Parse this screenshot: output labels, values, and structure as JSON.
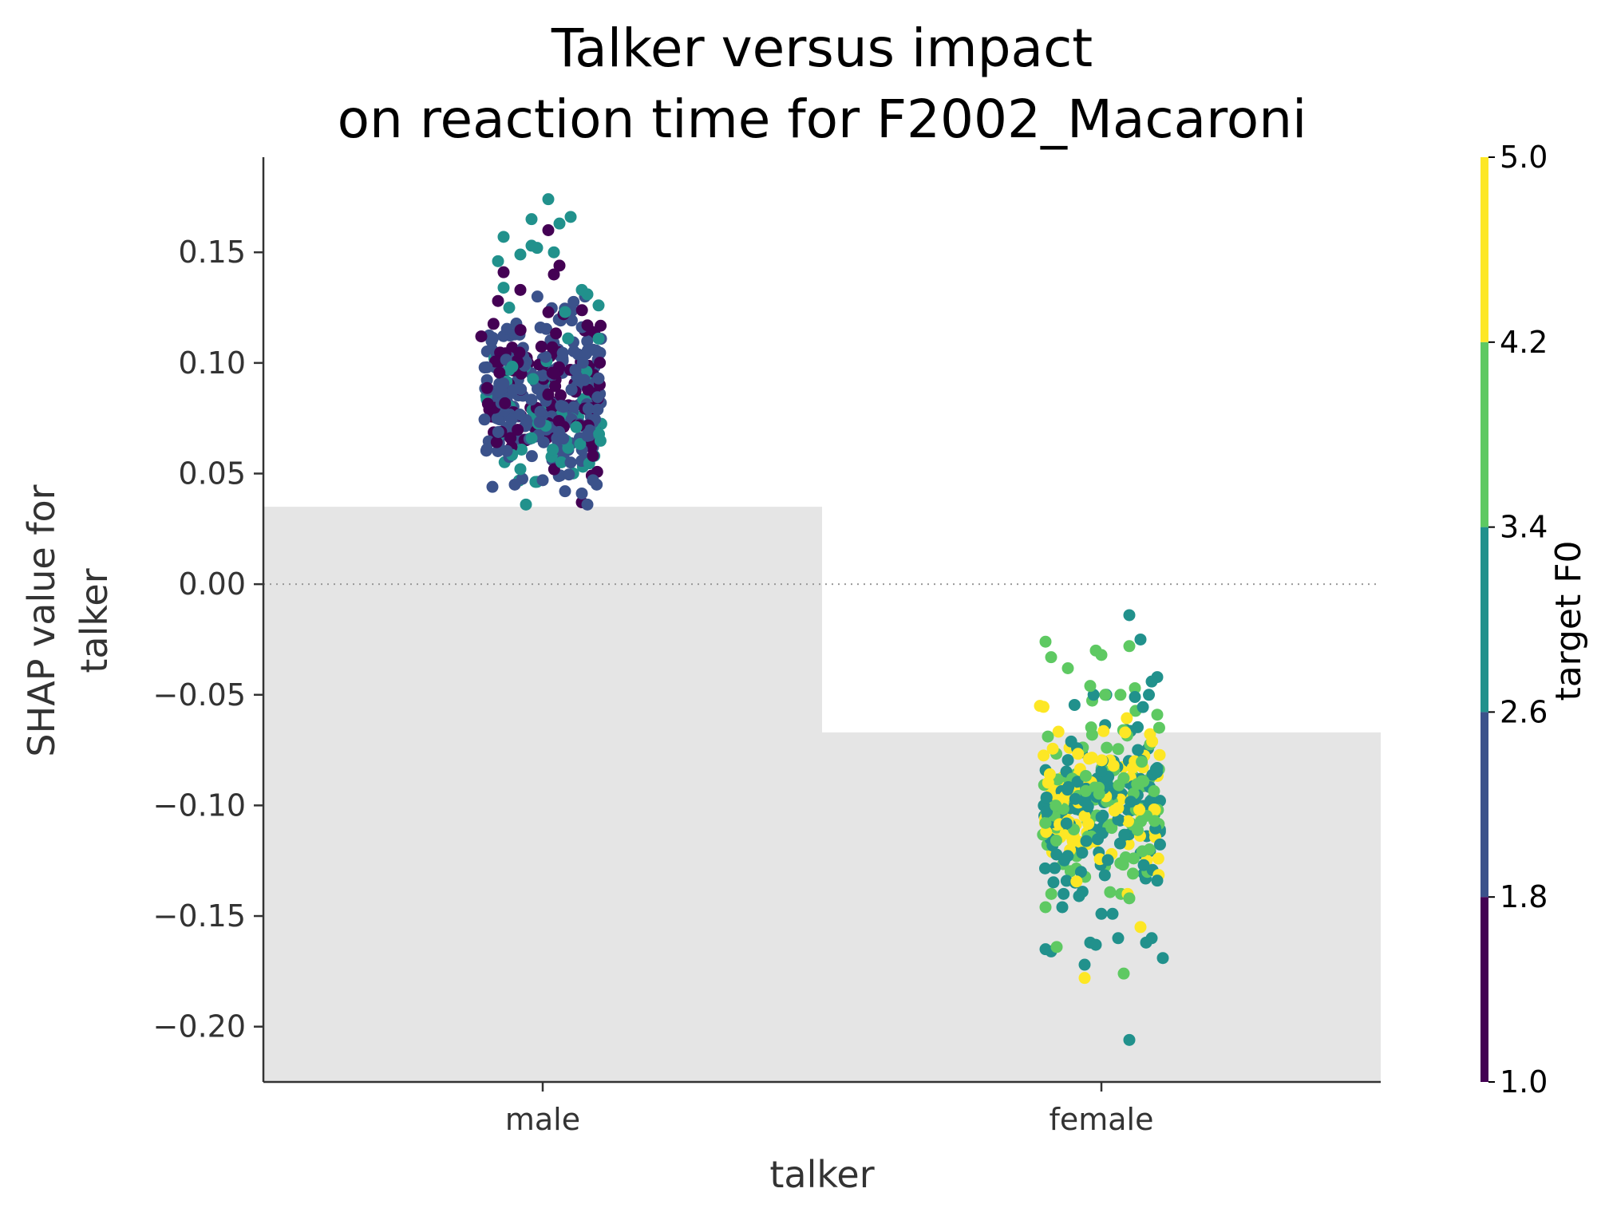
{
  "chart_data": {
    "type": "scatter",
    "title_line1": "Talker versus impact",
    "title_line2": "on reaction time for F2002_Macaroni",
    "xlabel": "talker",
    "ylabel_line1": "SHAP value for",
    "ylabel_line2": "talker",
    "categories": [
      "male",
      "female"
    ],
    "ylim": [
      -0.225,
      0.193
    ],
    "yticks": [
      0.15,
      0.1,
      0.05,
      0.0,
      -0.05,
      -0.1,
      -0.15,
      -0.2
    ],
    "ytick_labels": [
      "0.15",
      "0.10",
      "0.05",
      "0.00",
      "−0.05",
      "−0.10",
      "−0.15",
      "−0.20"
    ],
    "background_bars": [
      {
        "category": "male",
        "value": 0.035
      },
      {
        "category": "female",
        "value": -0.067
      }
    ],
    "zero_line": true,
    "grid": false,
    "colorbar": {
      "label": "target F0",
      "range": [
        1.0,
        5.0
      ],
      "ticks": [
        "1.0",
        "1.8",
        "2.6",
        "3.4",
        "4.2",
        "5.0"
      ],
      "bins": [
        {
          "from": 1.0,
          "to": 1.8,
          "color": "#440154"
        },
        {
          "from": 1.8,
          "to": 2.6,
          "color": "#3b528b"
        },
        {
          "from": 2.6,
          "to": 3.4,
          "color": "#21918c"
        },
        {
          "from": 3.4,
          "to": 4.2,
          "color": "#5ec962"
        },
        {
          "from": 4.2,
          "to": 5.0,
          "color": "#fde725"
        }
      ]
    },
    "groups": [
      {
        "category": "male",
        "points": [
          {
            "jitter": -0.05,
            "y": 0.045,
            "c": 2.2
          },
          {
            "jitter": 0.04,
            "y": 0.042,
            "c": 2.2
          },
          {
            "jitter": 0.07,
            "y": 0.037,
            "c": 1.4
          },
          {
            "jitter": -0.03,
            "y": 0.036,
            "c": 3.0
          },
          {
            "jitter": 0.08,
            "y": 0.036,
            "c": 2.2
          },
          {
            "jitter": -0.09,
            "y": 0.044,
            "c": 2.2
          },
          {
            "jitter": 0.09,
            "y": 0.058,
            "c": 1.4
          },
          {
            "jitter": -0.1,
            "y": 0.061,
            "c": 2.2
          },
          {
            "jitter": 0.1,
            "y": 0.093,
            "c": 2.2
          },
          {
            "jitter": -0.11,
            "y": 0.112,
            "c": 1.4
          },
          {
            "jitter": 0.1,
            "y": 0.111,
            "c": 3.0
          },
          {
            "jitter": -0.08,
            "y": 0.128,
            "c": 1.4
          },
          {
            "jitter": -0.07,
            "y": 0.134,
            "c": 3.0
          },
          {
            "jitter": 0.08,
            "y": 0.131,
            "c": 3.0
          },
          {
            "jitter": 0.1,
            "y": 0.126,
            "c": 3.0
          },
          {
            "jitter": -0.08,
            "y": 0.146,
            "c": 3.0
          },
          {
            "jitter": -0.04,
            "y": 0.149,
            "c": 3.0
          },
          {
            "jitter": -0.01,
            "y": 0.152,
            "c": 3.0
          },
          {
            "jitter": 0.02,
            "y": 0.15,
            "c": 3.0
          },
          {
            "jitter": 0.02,
            "y": 0.14,
            "c": 1.4
          },
          {
            "jitter": 0.03,
            "y": 0.144,
            "c": 1.4
          },
          {
            "jitter": -0.07,
            "y": 0.141,
            "c": 1.4
          },
          {
            "jitter": -0.07,
            "y": 0.157,
            "c": 3.0
          },
          {
            "jitter": -0.02,
            "y": 0.165,
            "c": 3.0
          },
          {
            "jitter": 0.01,
            "y": 0.174,
            "c": 3.0
          },
          {
            "jitter": 0.05,
            "y": 0.166,
            "c": 3.0
          },
          {
            "jitter": 0.03,
            "y": 0.163,
            "c": 3.0
          },
          {
            "jitter": -0.02,
            "y": 0.153,
            "c": 3.0
          },
          {
            "jitter": 0.01,
            "y": 0.16,
            "c": 1.4
          },
          {
            "jitter": -0.04,
            "y": 0.133,
            "c": 1.4
          },
          {
            "jitter": -0.06,
            "y": 0.125,
            "c": 3.0
          },
          {
            "jitter": 0.07,
            "y": 0.133,
            "c": 3.0
          },
          {
            "jitter": 0.04,
            "y": 0.123,
            "c": 3.0
          },
          {
            "jitter": 0.08,
            "y": 0.117,
            "c": 1.4
          },
          {
            "jitter": -0.1,
            "y": 0.098,
            "c": 2.2
          },
          {
            "jitter": -0.02,
            "y": 0.066,
            "c": 3.0
          },
          {
            "jitter": 0.05,
            "y": 0.055,
            "c": 2.2
          },
          {
            "jitter": 0.08,
            "y": 0.067,
            "c": 2.2
          },
          {
            "jitter": 0.06,
            "y": 0.071,
            "c": 3.0
          },
          {
            "jitter": -0.04,
            "y": 0.052,
            "c": 3.0
          },
          {
            "jitter": 0.0,
            "y": 0.047,
            "c": 2.2
          },
          {
            "jitter": 0.09,
            "y": 0.047,
            "c": 2.2
          },
          {
            "jitter": 0.07,
            "y": 0.041,
            "c": 2.2
          }
        ],
        "cloud": {
          "count": 380,
          "y_min": 0.045,
          "y_max": 0.13,
          "center": 0.085,
          "spread": 0.018,
          "jitter": 0.105,
          "color_mix": [
            {
              "c": 2.2,
              "w": 0.56
            },
            {
              "c": 1.4,
              "w": 0.28
            },
            {
              "c": 3.0,
              "w": 0.16
            }
          ]
        }
      },
      {
        "category": "female",
        "points": [
          {
            "jitter": 0.05,
            "y": -0.014,
            "c": 3.0
          },
          {
            "jitter": 0.07,
            "y": -0.025,
            "c": 3.0
          },
          {
            "jitter": -0.1,
            "y": -0.026,
            "c": 3.8
          },
          {
            "jitter": 0.05,
            "y": -0.028,
            "c": 3.8
          },
          {
            "jitter": -0.01,
            "y": -0.03,
            "c": 3.8
          },
          {
            "jitter": 0.0,
            "y": -0.032,
            "c": 3.8
          },
          {
            "jitter": -0.09,
            "y": -0.033,
            "c": 3.8
          },
          {
            "jitter": -0.06,
            "y": -0.038,
            "c": 3.8
          },
          {
            "jitter": 0.1,
            "y": -0.042,
            "c": 3.0
          },
          {
            "jitter": 0.09,
            "y": -0.044,
            "c": 3.0
          },
          {
            "jitter": -0.02,
            "y": -0.046,
            "c": 3.8
          },
          {
            "jitter": 0.06,
            "y": -0.047,
            "c": 3.8
          },
          {
            "jitter": -0.11,
            "y": -0.055,
            "c": 4.6
          },
          {
            "jitter": 0.06,
            "y": -0.051,
            "c": 3.0
          },
          {
            "jitter": 0.1,
            "y": -0.059,
            "c": 3.8
          },
          {
            "jitter": -0.1,
            "y": -0.165,
            "c": 3.0
          },
          {
            "jitter": -0.09,
            "y": -0.166,
            "c": 3.0
          },
          {
            "jitter": -0.08,
            "y": -0.164,
            "c": 3.8
          },
          {
            "jitter": -0.02,
            "y": -0.162,
            "c": 3.0
          },
          {
            "jitter": -0.01,
            "y": -0.163,
            "c": 3.0
          },
          {
            "jitter": 0.03,
            "y": -0.16,
            "c": 3.0
          },
          {
            "jitter": 0.08,
            "y": -0.162,
            "c": 3.0
          },
          {
            "jitter": 0.09,
            "y": -0.16,
            "c": 3.0
          },
          {
            "jitter": 0.11,
            "y": -0.169,
            "c": 3.0
          },
          {
            "jitter": -0.03,
            "y": -0.172,
            "c": 3.0
          },
          {
            "jitter": -0.03,
            "y": -0.178,
            "c": 4.6
          },
          {
            "jitter": 0.04,
            "y": -0.176,
            "c": 3.8
          },
          {
            "jitter": 0.07,
            "y": -0.155,
            "c": 4.6
          },
          {
            "jitter": 0.05,
            "y": -0.206,
            "c": 3.0
          },
          {
            "jitter": -0.1,
            "y": -0.146,
            "c": 3.8
          },
          {
            "jitter": -0.07,
            "y": -0.146,
            "c": 3.0
          },
          {
            "jitter": 0.0,
            "y": -0.149,
            "c": 3.0
          },
          {
            "jitter": 0.02,
            "y": -0.149,
            "c": 3.0
          },
          {
            "jitter": 0.05,
            "y": -0.142,
            "c": 3.8
          },
          {
            "jitter": -0.04,
            "y": -0.141,
            "c": 3.0
          },
          {
            "jitter": 0.1,
            "y": -0.134,
            "c": 3.0
          }
        ],
        "cloud": {
          "count": 330,
          "y_min": -0.14,
          "y_max": -0.05,
          "center": -0.097,
          "spread": 0.02,
          "jitter": 0.105,
          "color_mix": [
            {
              "c": 3.0,
              "w": 0.38
            },
            {
              "c": 3.8,
              "w": 0.34
            },
            {
              "c": 4.6,
              "w": 0.28
            }
          ]
        }
      }
    ]
  }
}
